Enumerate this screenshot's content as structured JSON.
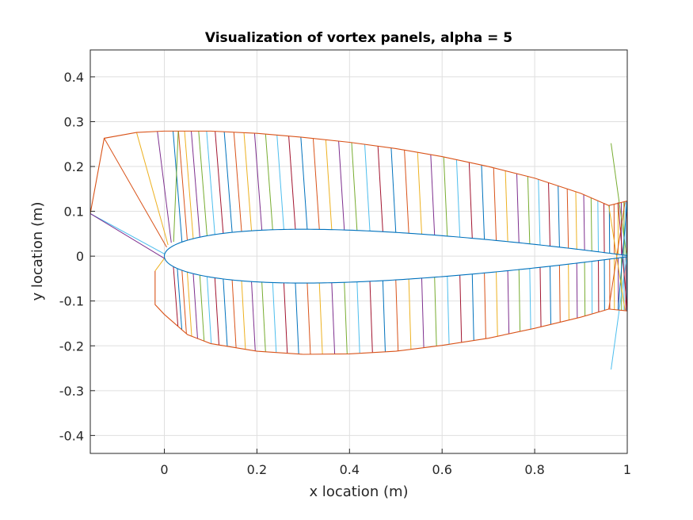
{
  "chart_data": {
    "type": "line",
    "title": "Visualization of vortex panels, alpha = 5",
    "xlabel": "x location (m)",
    "ylabel": "y location (m)",
    "xlim": [
      -0.16,
      1.0
    ],
    "ylim": [
      -0.44,
      0.46
    ],
    "xticks": [
      "0",
      "0.2",
      "0.4",
      "0.6",
      "0.8",
      "1"
    ],
    "xtick_values": [
      0,
      0.2,
      0.4,
      0.6,
      0.8,
      1
    ],
    "yticks": [
      "-0.4",
      "-0.3",
      "-0.2",
      "-0.1",
      "0",
      "0.1",
      "0.2",
      "0.3",
      "0.4"
    ],
    "ytick_values": [
      -0.4,
      -0.3,
      -0.2,
      -0.1,
      0,
      0.1,
      0.2,
      0.3,
      0.4
    ],
    "grid": true,
    "airfoil": {
      "thickness_ratio": 0.12,
      "alpha_deg": 5
    },
    "upper_envelope": [
      [
        -0.16,
        0.095
      ],
      [
        -0.13,
        0.263
      ],
      [
        -0.06,
        0.276
      ],
      [
        0.0,
        0.279
      ],
      [
        0.1,
        0.279
      ],
      [
        0.2,
        0.274
      ],
      [
        0.3,
        0.265
      ],
      [
        0.4,
        0.254
      ],
      [
        0.5,
        0.24
      ],
      [
        0.6,
        0.222
      ],
      [
        0.7,
        0.2
      ],
      [
        0.8,
        0.174
      ],
      [
        0.9,
        0.14
      ],
      [
        0.96,
        0.113
      ],
      [
        1.0,
        0.123
      ]
    ],
    "lower_envelope": [
      [
        -0.02,
        -0.033
      ],
      [
        -0.02,
        -0.108
      ],
      [
        0.0,
        -0.13
      ],
      [
        0.05,
        -0.175
      ],
      [
        0.1,
        -0.195
      ],
      [
        0.2,
        -0.212
      ],
      [
        0.3,
        -0.219
      ],
      [
        0.4,
        -0.218
      ],
      [
        0.5,
        -0.212
      ],
      [
        0.6,
        -0.199
      ],
      [
        0.7,
        -0.183
      ],
      [
        0.8,
        -0.161
      ],
      [
        0.9,
        -0.136
      ],
      [
        0.96,
        -0.118
      ],
      [
        1.0,
        -0.122
      ]
    ],
    "trailing_spikes": [
      [
        0.965,
        0.252
      ],
      [
        0.965,
        -0.253
      ]
    ],
    "colors": [
      "#0072bd",
      "#d95319",
      "#edb120",
      "#7e2f8e",
      "#77ac30",
      "#4dbeee",
      "#a2142f"
    ]
  }
}
